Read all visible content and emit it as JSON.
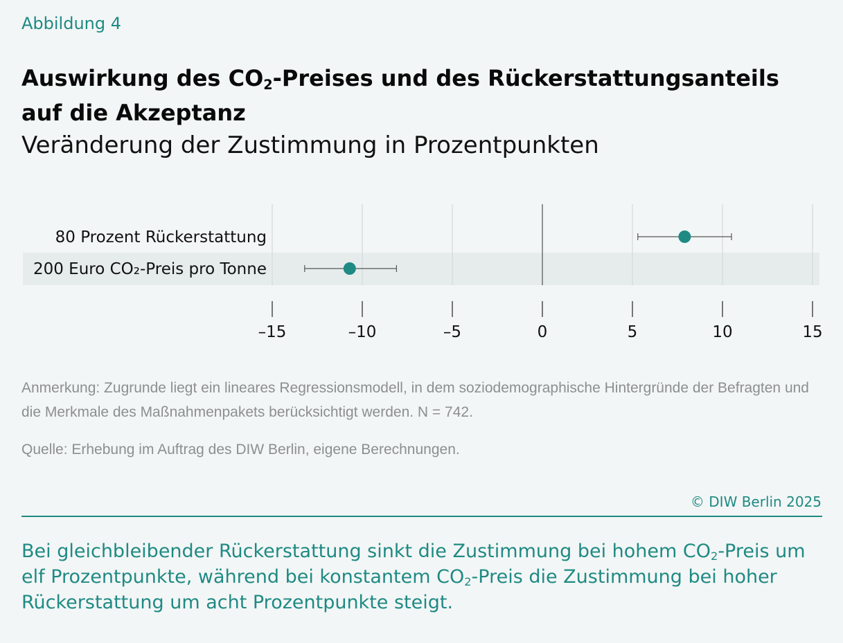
{
  "figure_label": "Abbildung 4",
  "title": {
    "part1": "Auswirkung des CO",
    "sub": "2",
    "part2": "-Preises und des Rückerstattungsanteils auf die Akzeptanz"
  },
  "subtitle": "Veränderung der Zustimmung in Prozentpunkten",
  "chart_data": {
    "type": "scatter",
    "subtype": "point-with-confidence-interval",
    "categories": [
      "80 Prozent Rückerstattung",
      "200 Euro CO₂-Preis pro Tonne"
    ],
    "values": [
      7.9,
      -10.7
    ],
    "ci_low": [
      5.3,
      -13.2
    ],
    "ci_high": [
      10.5,
      -8.1
    ],
    "xlim": [
      -15,
      15
    ],
    "xticks": [
      -15,
      -10,
      -5,
      0,
      5,
      10,
      15
    ],
    "xtick_labels": [
      "–15",
      "–10",
      "–5",
      "0",
      "5",
      "10",
      "15"
    ],
    "title": "",
    "xlabel": "",
    "ylabel": "",
    "grid": "vertical",
    "highlighted_row": 1,
    "colors": {
      "point": "#1f8a84",
      "whisker": "#555555",
      "grid": "#d0d3d3",
      "zero": "#666666",
      "band": "#e6ecec"
    }
  },
  "note": "Anmerkung: Zugrunde liegt ein lineares Regressionsmodell, in dem soziodemographische Hintergründe der Befragten und die Merkmale des Maßnahmenpakets berücksichtigt werden. N = 742.",
  "source": "Quelle: Erhebung im Auftrag des DIW Berlin, eigene Berechnungen.",
  "copyright": "© DIW Berlin 2025",
  "takeaway": {
    "part1": "Bei gleichbleibender Rückerstattung sinkt die Zustimmung bei hohem CO",
    "sub1": "2",
    "part2": "-Preis um elf Prozentpunkte, während bei konstantem CO",
    "sub2": "2",
    "part3": "-Preis die Zustimmung bei hoher Rückerstattung um acht Prozentpunkte steigt."
  },
  "brand": {
    "accent": "#1f8a84",
    "background": "#f3f6f6"
  }
}
